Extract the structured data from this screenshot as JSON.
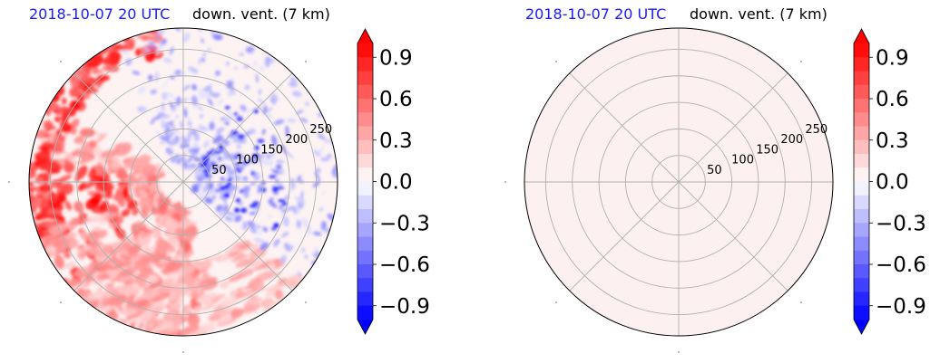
{
  "chart_data": [
    {
      "type": "heatmap",
      "projection": "polar",
      "title_left": "2018-10-07 20 UTC",
      "title_right": "down. vent. (7 km)",
      "radial_ticks": [
        "50",
        "100",
        "150",
        "200",
        "250"
      ],
      "radial_tick_values": [
        50,
        100,
        150,
        200,
        250
      ],
      "rmax": 290,
      "angular_grid_deg": 45,
      "field": "mixed",
      "colorbar": {
        "range": [
          -1.0,
          1.0
        ],
        "ticks": [
          "0.9",
          "0.6",
          "0.3",
          "0.0",
          "−0.3",
          "−0.6",
          "−0.9"
        ],
        "tick_values": [
          0.9,
          0.6,
          0.3,
          0.0,
          -0.3,
          -0.6,
          -0.9
        ],
        "colormap": "bwr",
        "extend": "both"
      }
    },
    {
      "type": "heatmap",
      "projection": "polar",
      "title_left": "2018-10-07 20 UTC",
      "title_right": "down. vent. (7 km)",
      "radial_ticks": [
        "50",
        "100",
        "150",
        "200",
        "250"
      ],
      "radial_tick_values": [
        50,
        100,
        150,
        200,
        250
      ],
      "rmax": 290,
      "angular_grid_deg": 45,
      "field": "near-zero",
      "colorbar": {
        "range": [
          -1.0,
          1.0
        ],
        "ticks": [
          "0.9",
          "0.6",
          "0.3",
          "0.0",
          "−0.3",
          "−0.6",
          "−0.9"
        ],
        "tick_values": [
          0.9,
          0.6,
          0.3,
          0.0,
          -0.3,
          -0.6,
          -0.9
        ],
        "colormap": "bwr",
        "extend": "both"
      }
    }
  ],
  "colors": {
    "title_time": "#1a1aff",
    "grid": "#b0b0b0",
    "background_field": "#fdf0f0"
  }
}
